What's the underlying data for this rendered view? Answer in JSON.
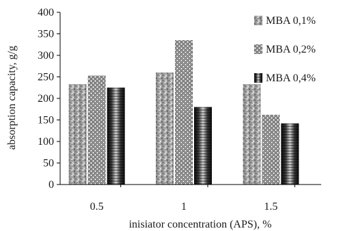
{
  "chart_data": {
    "type": "bar",
    "categories": [
      "0.5",
      "1",
      "1.5"
    ],
    "series": [
      {
        "name": "MBA 0,1%",
        "values": [
          233,
          260,
          233
        ],
        "fill": "pat-stone"
      },
      {
        "name": "MBA 0,2%",
        "values": [
          253,
          335,
          162
        ],
        "fill": "pat-check"
      },
      {
        "name": "MBA 0,4%",
        "values": [
          225,
          180,
          142
        ],
        "fill": "pat-bands"
      }
    ],
    "ylim": [
      0,
      400
    ],
    "yticks": [
      "0",
      "50",
      "100",
      "150",
      "200",
      "250",
      "300",
      "350",
      "400"
    ],
    "ylabel": "absorption capacity, g/g",
    "xlabel": "inisiator  concentration (APS), %",
    "legend_position": "top-right",
    "grid": false
  }
}
